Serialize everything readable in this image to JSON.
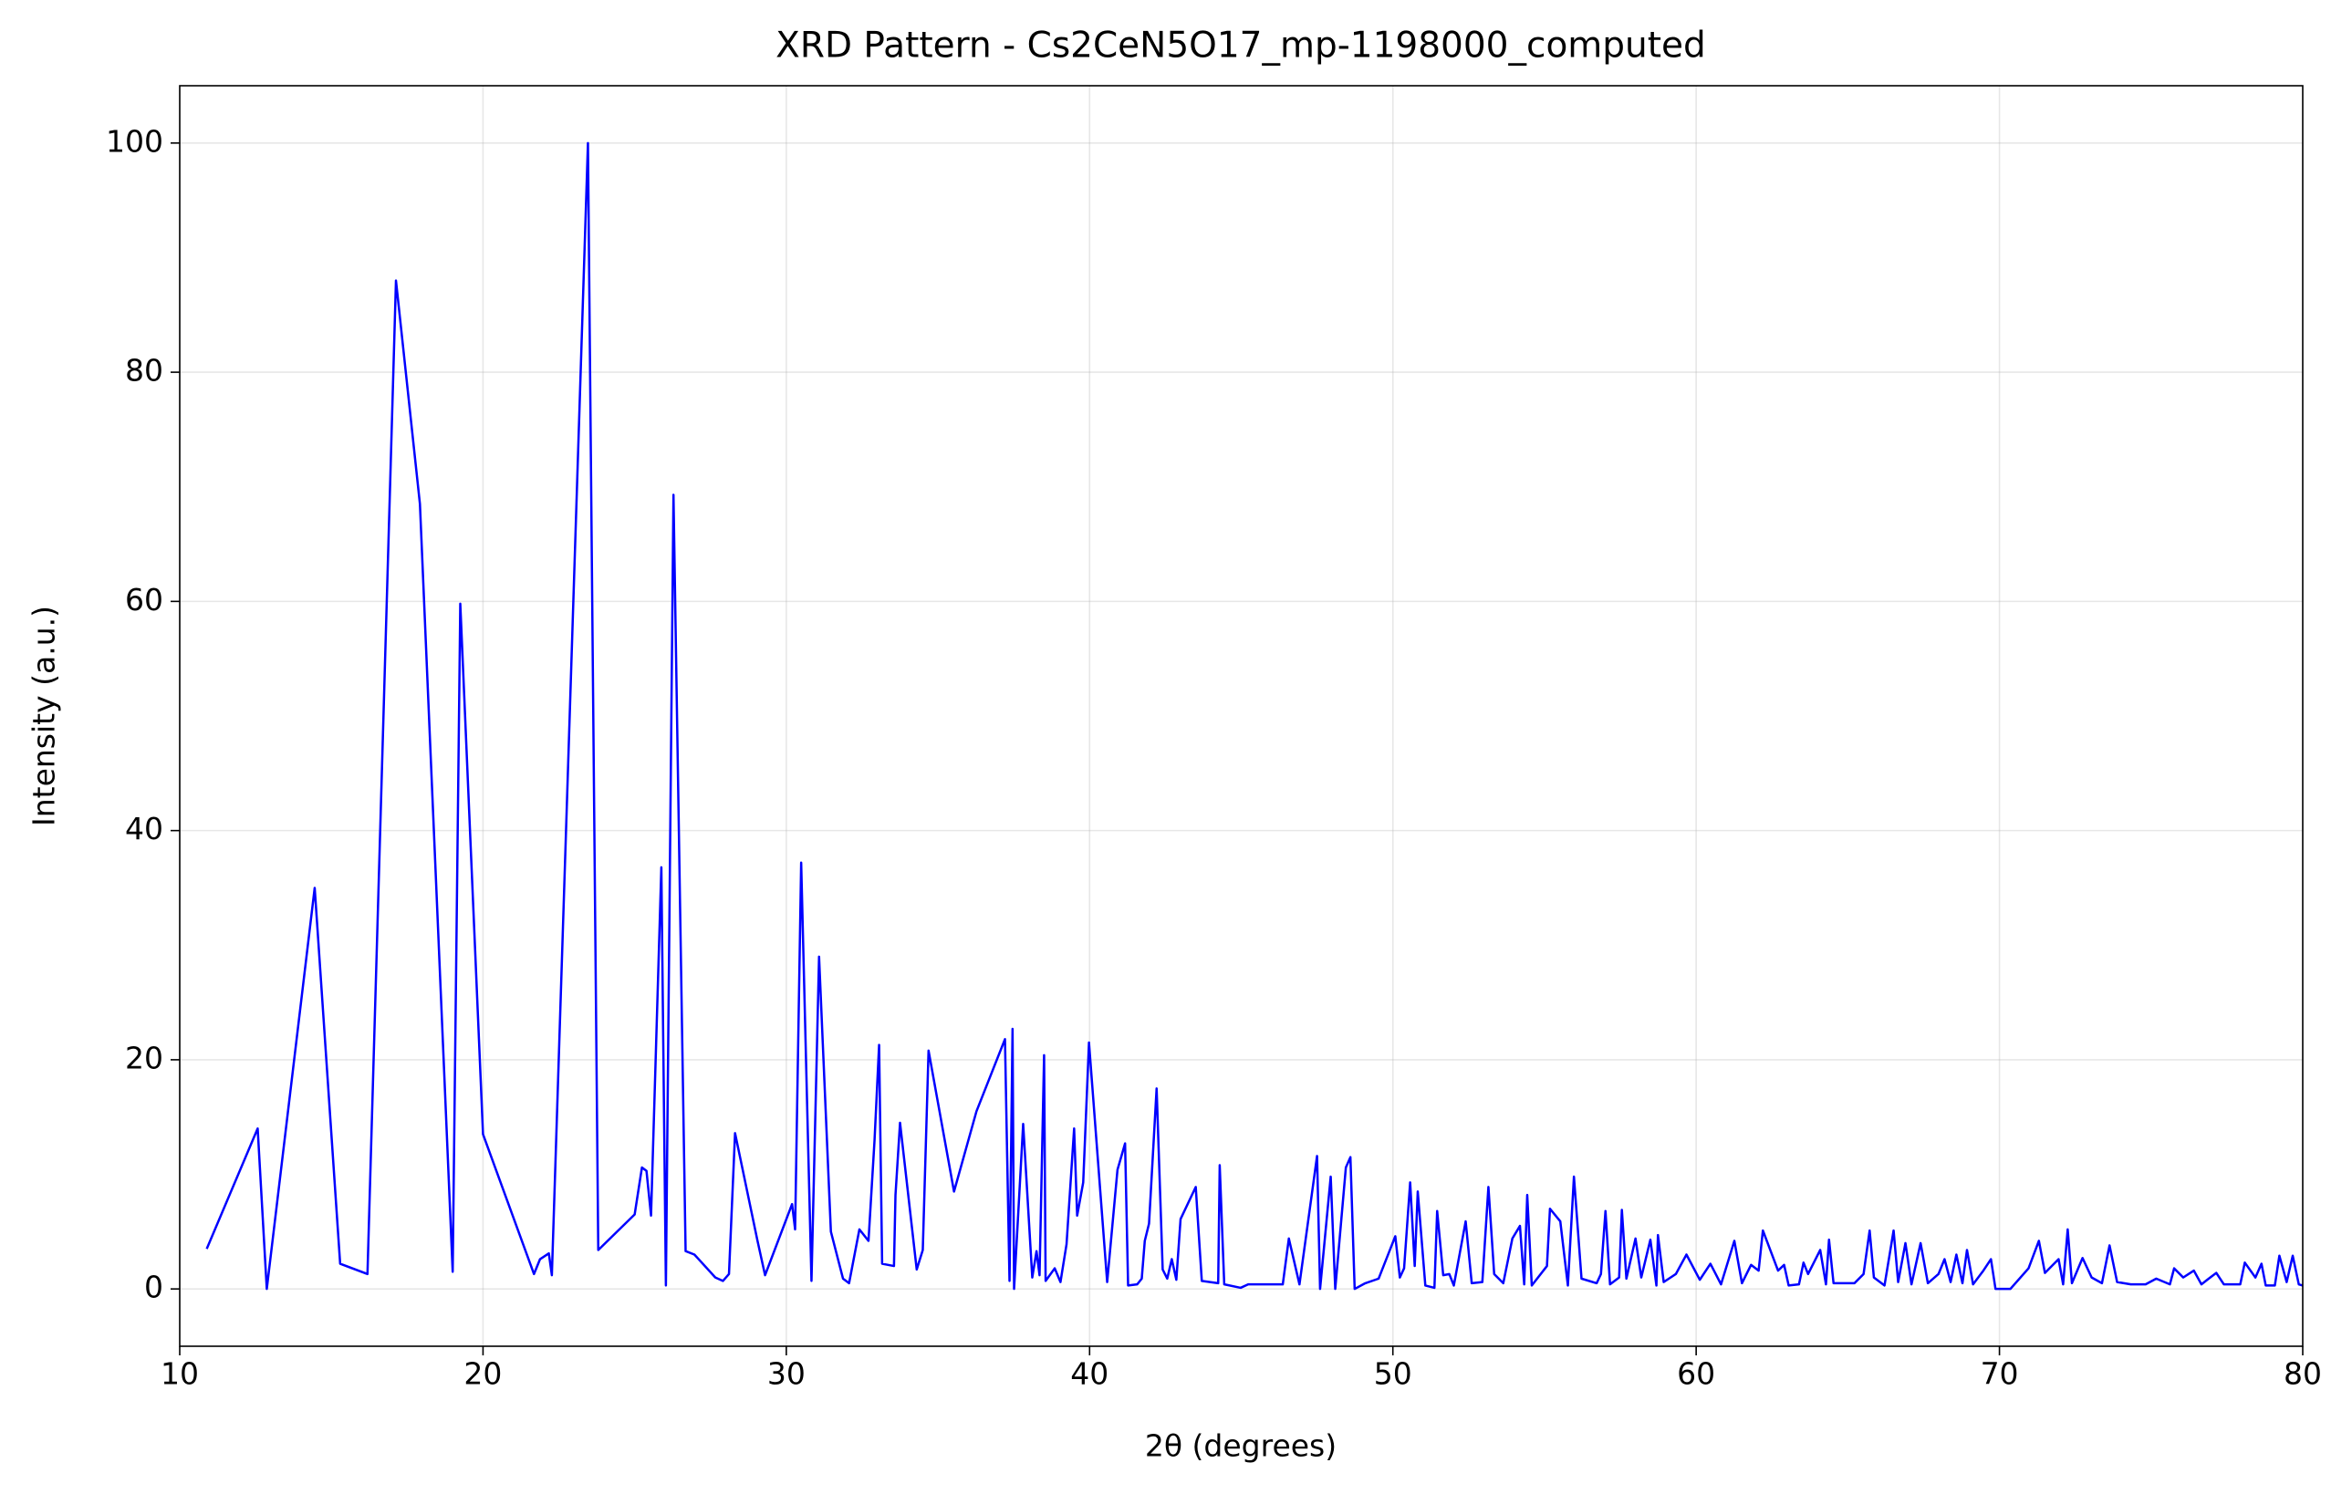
{
  "chart_data": {
    "type": "line",
    "title": "XRD Pattern - Cs2CeN5O17_mp-1198000_computed",
    "x_label": "2θ (degrees)",
    "y_label": "Intensity (a.u.)",
    "color": "#0000ff",
    "grid": true,
    "xlim": [
      10,
      80
    ],
    "ylim": [
      -5,
      105
    ],
    "xticks": [
      10,
      20,
      30,
      40,
      50,
      60,
      70,
      80
    ],
    "yticks": [
      0,
      20,
      40,
      60,
      80,
      100
    ],
    "x": [
      10.89,
      12.57,
      12.87,
      14.45,
      15.29,
      16.19,
      17.13,
      17.92,
      19.0,
      19.25,
      20.0,
      21.68,
      21.88,
      22.17,
      22.27,
      23.46,
      23.8,
      25.0,
      25.24,
      25.39,
      25.54,
      25.88,
      26.03,
      26.28,
      26.68,
      26.97,
      27.66,
      27.91,
      28.11,
      28.31,
      29.05,
      29.3,
      30.19,
      30.29,
      30.49,
      30.83,
      31.08,
      31.47,
      31.87,
      32.07,
      32.41,
      32.71,
      32.91,
      33.06,
      33.16,
      33.55,
      33.6,
      33.75,
      34.3,
      34.5,
      34.69,
      35.53,
      36.27,
      37.21,
      37.36,
      37.46,
      37.51,
      37.81,
      38.11,
      38.25,
      38.35,
      38.5,
      38.55,
      38.85,
      39.04,
      39.24,
      39.49,
      39.59,
      39.79,
      39.98,
      40.58,
      40.92,
      41.17,
      41.27,
      41.57,
      41.72,
      41.82,
      41.96,
      42.21,
      42.41,
      42.56,
      42.71,
      42.86,
      43.0,
      43.5,
      43.7,
      44.24,
      44.29,
      44.44,
      44.98,
      45.23,
      46.37,
      46.57,
      46.92,
      47.5,
      47.6,
      47.95,
      48.1,
      48.45,
      48.6,
      48.74,
      49.09,
      49.53,
      50.08,
      50.23,
      50.37,
      50.57,
      50.72,
      50.82,
      51.07,
      51.37,
      51.46,
      51.66,
      51.86,
      52.01,
      52.4,
      52.6,
      52.95,
      53.15,
      53.34,
      53.64,
      53.94,
      54.19,
      54.33,
      54.43,
      54.58,
      55.08,
      55.18,
      55.52,
      55.77,
      55.97,
      56.22,
      56.72,
      56.86,
      57.01,
      57.16,
      57.46,
      57.55,
      57.7,
      58.0,
      58.19,
      58.49,
      58.69,
      58.74,
      58.93,
      59.33,
      59.68,
      60.12,
      60.47,
      60.82,
      61.26,
      61.51,
      61.81,
      62.06,
      62.2,
      62.7,
      62.9,
      63.05,
      63.39,
      63.54,
      63.69,
      64.09,
      64.28,
      64.38,
      64.53,
      65.22,
      65.52,
      65.72,
      65.86,
      66.21,
      66.51,
      66.66,
      66.9,
      67.1,
      67.4,
      67.64,
      67.99,
      68.19,
      68.39,
      68.58,
      68.78,
      68.93,
      69.13,
      69.47,
      69.72,
      69.87,
      70.36,
      70.96,
      71.3,
      71.5,
      71.95,
      72.1,
      72.25,
      72.39,
      72.74,
      73.04,
      73.38,
      73.63,
      73.88,
      74.33,
      74.82,
      75.17,
      75.62,
      75.76,
      76.06,
      76.41,
      76.66,
      76.9,
      77.15,
      77.4,
      77.94,
      78.09,
      78.44,
      78.64,
      78.78,
      79.08,
      79.23,
      79.47,
      79.67,
      79.87,
      80.0
    ],
    "values": [
      3.5,
      14,
      0,
      35,
      2.2,
      1.3,
      88,
      68.5,
      1.5,
      59.8,
      13.5,
      1.3,
      2.6,
      3.1,
      1.2,
      100,
      3.4,
      6.5,
      10.6,
      10.3,
      6.4,
      36.8,
      0.3,
      69.3,
      3.3,
      3.0,
      1.0,
      0.7,
      1.3,
      13.6,
      4.2,
      1.2,
      7.4,
      5.2,
      37.2,
      0.7,
      29,
      5.0,
      0.9,
      0.5,
      5.2,
      4.2,
      13,
      21.3,
      2.2,
      2.0,
      8.2,
      14.5,
      1.7,
      3.4,
      20.8,
      8.5,
      15.5,
      21.8,
      0.7,
      22.7,
      0,
      14.4,
      1.0,
      3.3,
      1.2,
      20.4,
      0.7,
      1.8,
      0.6,
      3.9,
      14,
      6.4,
      9.3,
      21.5,
      0.6,
      10.4,
      12.7,
      0.3,
      0.4,
      0.9,
      4.2,
      5.7,
      17.5,
      1.7,
      0.9,
      2.6,
      0.8,
      6.1,
      8.9,
      0.7,
      0.5,
      10.8,
      0.4,
      0.1,
      0.4,
      0.4,
      4.4,
      0.4,
      11.6,
      0,
      9.8,
      0,
      10.6,
      11.5,
      0,
      0.5,
      0.9,
      4.6,
      1.0,
      1.8,
      9.3,
      2.0,
      8.5,
      0.3,
      0.1,
      6.8,
      1.2,
      1.3,
      0.3,
      5.9,
      0.5,
      0.6,
      8.9,
      1.3,
      0.5,
      4.4,
      5.5,
      0.4,
      8.2,
      0.3,
      2.0,
      7.0,
      5.9,
      0.3,
      9.8,
      0.9,
      0.5,
      1.3,
      6.8,
      0.4,
      1.0,
      6.9,
      0.9,
      4.4,
      1.0,
      4.3,
      0.3,
      4.7,
      0.6,
      1.3,
      3.0,
      0.8,
      2.2,
      0.4,
      4.2,
      0.5,
      2.1,
      1.6,
      5.1,
      1.6,
      2.1,
      0.3,
      0.4,
      2.3,
      1.3,
      3.4,
      0.4,
      4.3,
      0.5,
      0.5,
      1.3,
      5.1,
      1.0,
      0.3,
      5.1,
      0.6,
      4.0,
      0.4,
      4.0,
      0.5,
      1.3,
      2.6,
      0.6,
      3.0,
      0.5,
      3.4,
      0.4,
      1.6,
      2.6,
      0,
      0,
      1.8,
      4.2,
      1.4,
      2.6,
      0.4,
      5.2,
      0.5,
      2.7,
      1.0,
      0.5,
      3.8,
      0.6,
      0.4,
      0.4,
      0.9,
      0.4,
      1.8,
      1.0,
      1.6,
      0.4,
      0.9,
      1.4,
      0.4,
      0.4,
      2.3,
      1.0,
      2.2,
      0.3,
      0.3,
      2.9,
      0.6,
      2.9,
      0.4,
      0.3
    ]
  }
}
